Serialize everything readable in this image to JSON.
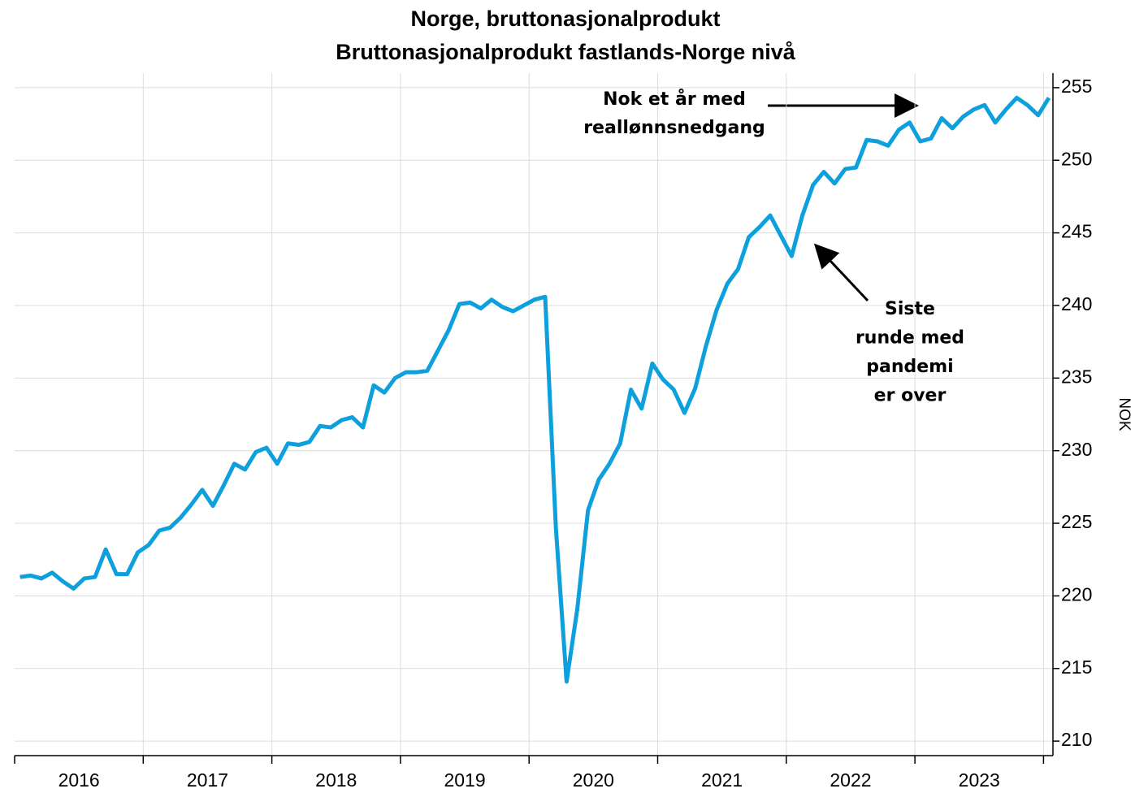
{
  "chart_data": {
    "type": "line",
    "title": "Norge, bruttonasjonalprodukt",
    "subtitle": "Bruttonasjonalprodukt fastlands-Norge nivå",
    "y_axis_label": "NOK",
    "x_labels": [
      "2016",
      "2017",
      "2018",
      "2019",
      "2020",
      "2021",
      "2022",
      "2023"
    ],
    "color": "#0ea0dc",
    "grid": true,
    "ylim": [
      209.0,
      256.0
    ],
    "yticks": [
      210,
      215,
      220,
      225,
      230,
      235,
      240,
      245,
      250,
      255
    ],
    "values": [
      221.3,
      221.4,
      221.2,
      221.6,
      221.0,
      220.5,
      221.2,
      221.3,
      223.2,
      221.5,
      221.5,
      223.0,
      223.5,
      224.5,
      224.7,
      225.4,
      226.3,
      227.3,
      226.2,
      227.6,
      229.1,
      228.7,
      229.9,
      230.2,
      229.1,
      230.5,
      230.4,
      230.6,
      231.7,
      231.6,
      232.1,
      232.3,
      231.6,
      234.5,
      234.0,
      235.0,
      235.4,
      235.4,
      235.5,
      236.9,
      238.3,
      240.1,
      240.2,
      239.8,
      240.4,
      239.9,
      239.6,
      240.0,
      240.4,
      240.6,
      224.7,
      214.1,
      219.1,
      225.9,
      228.0,
      229.1,
      230.5,
      234.2,
      232.9,
      236.0,
      234.9,
      234.2,
      232.6,
      234.3,
      237.2,
      239.7,
      241.5,
      242.5,
      244.7,
      245.4,
      246.2,
      244.8,
      243.4,
      246.2,
      248.3,
      249.2,
      248.4,
      249.4,
      249.5,
      251.4,
      251.3,
      251.0,
      252.1,
      252.6,
      251.3,
      251.5,
      252.9,
      252.2,
      253.0,
      253.5,
      253.8,
      252.6,
      253.5,
      254.3,
      253.8,
      253.1,
      254.3
    ],
    "annotations": [
      {
        "lines": [
          "Nok et år med",
          "reallønnsnedgang"
        ]
      },
      {
        "lines": [
          "Siste",
          "runde med",
          "pandemi",
          "er over"
        ]
      }
    ]
  }
}
